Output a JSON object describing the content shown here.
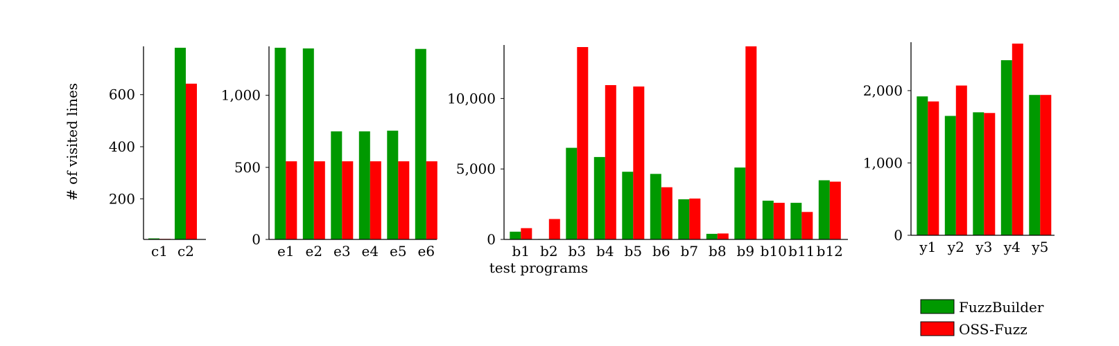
{
  "figure": {
    "ylabel": "# of visited lines",
    "xlabel": "test programs"
  },
  "colors": {
    "fuzzbuilder": "#009900",
    "ossfuzz": "#ff0000"
  },
  "legend": {
    "position": "bottom-right",
    "entries": [
      {
        "label": "FuzzBuilder",
        "color": "#009900"
      },
      {
        "label": "OSS-Fuzz",
        "color": "#ff0000"
      }
    ]
  },
  "chart_data": [
    {
      "type": "bar",
      "categories": [
        "c1",
        "c2"
      ],
      "series": [
        {
          "name": "FuzzBuilder",
          "values": [
            48,
            780
          ]
        },
        {
          "name": "OSS-Fuzz",
          "values": [
            46,
            642
          ]
        }
      ],
      "ylim": [
        44,
        780
      ],
      "yticks": [
        200,
        400,
        600
      ],
      "ytick_labels": [
        "200",
        "400",
        "600"
      ]
    },
    {
      "type": "bar",
      "categories": [
        "e1",
        "e2",
        "e3",
        "e4",
        "e5",
        "e6"
      ],
      "series": [
        {
          "name": "FuzzBuilder",
          "values": [
            1330,
            1325,
            750,
            750,
            755,
            1322
          ]
        },
        {
          "name": "OSS-Fuzz",
          "values": [
            542,
            542,
            542,
            542,
            542,
            542
          ]
        }
      ],
      "ylim": [
        0,
        1330
      ],
      "yticks": [
        0,
        500,
        1000
      ],
      "ytick_labels": [
        "0",
        "500",
        "1,000"
      ]
    },
    {
      "type": "bar",
      "categories": [
        "b1",
        "b2",
        "b3",
        "b4",
        "b5",
        "b6",
        "b7",
        "b8",
        "b9",
        "b10",
        "b11",
        "b12"
      ],
      "series": [
        {
          "name": "FuzzBuilder",
          "values": [
            550,
            30,
            6500,
            5850,
            4800,
            4650,
            2850,
            400,
            5100,
            2750,
            2600,
            4200
          ]
        },
        {
          "name": "OSS-Fuzz",
          "values": [
            800,
            1450,
            13650,
            10950,
            10850,
            3700,
            2900,
            420,
            13700,
            2600,
            1950,
            4100
          ]
        }
      ],
      "ylim": [
        0,
        13700
      ],
      "yticks": [
        0,
        5000,
        10000
      ],
      "ytick_labels": [
        "0",
        "5,000",
        "10,000"
      ]
    },
    {
      "type": "bar",
      "categories": [
        "y1",
        "y2",
        "y3",
        "y4",
        "y5"
      ],
      "series": [
        {
          "name": "FuzzBuilder",
          "values": [
            1920,
            1650,
            1700,
            2420,
            1940
          ]
        },
        {
          "name": "OSS-Fuzz",
          "values": [
            1850,
            2070,
            1690,
            2650,
            1940
          ]
        }
      ],
      "ylim": [
        0,
        2650
      ],
      "yticks": [
        0,
        1000,
        2000
      ],
      "ytick_labels": [
        "0",
        "1,000",
        "2,000"
      ]
    }
  ]
}
